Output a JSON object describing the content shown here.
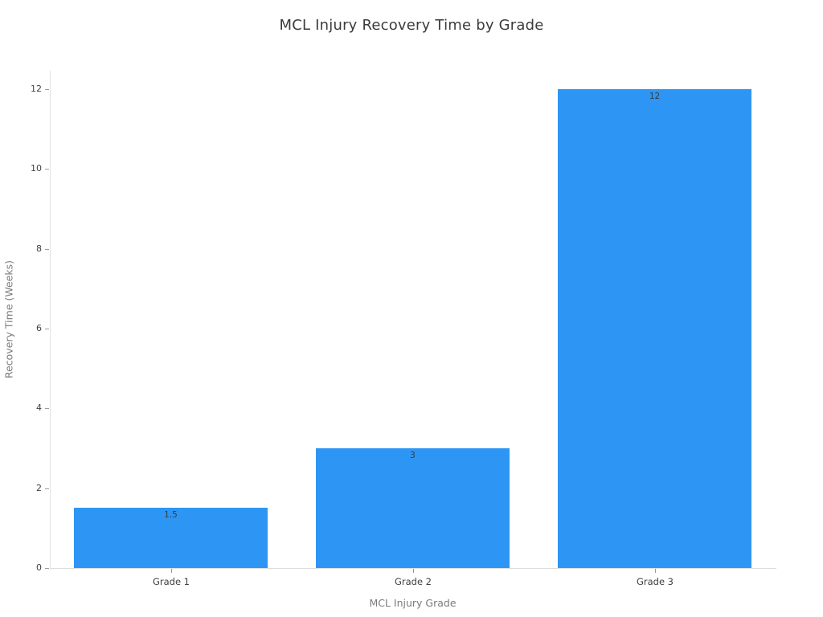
{
  "chart_data": {
    "type": "bar",
    "title": "MCL Injury Recovery Time by Grade",
    "categories": [
      "Grade 1",
      "Grade 2",
      "Grade 3"
    ],
    "values": [
      1.5,
      3,
      12
    ],
    "value_labels": [
      "1.5",
      "3",
      "12"
    ],
    "xlabel": "MCL Injury Grade",
    "ylabel": "Recovery Time (Weeks)",
    "ylim": [
      0,
      12
    ],
    "yticks": [
      0,
      2,
      4,
      6,
      8,
      10,
      12
    ],
    "grid": false,
    "legend": "none",
    "bar_color": "#2D96F5",
    "axis_line_color": "#e0e0e0",
    "tick_mark_color": "#9a9a9a",
    "tick_label_color": "#3f3f3f",
    "axis_title_color": "#7b7b7b",
    "title_color": "#3b3b3b",
    "value_label_color": "#3a3a3a",
    "background_color": "#ffffff"
  }
}
